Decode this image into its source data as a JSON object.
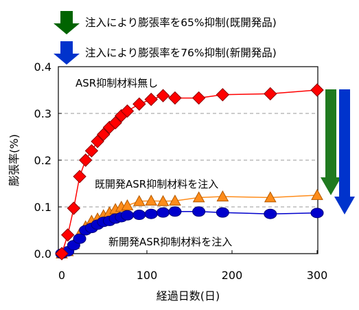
{
  "header": {
    "legend_green": "注入により膨張率を65%抑制(既開発品)",
    "legend_blue": "注入により膨張率を76%抑制(新開発品)"
  },
  "colors": {
    "red": "#ff0000",
    "orange": "#ff8c1a",
    "blue": "#0000cc",
    "green_arrow": "#006400",
    "blue_arrow": "#0033cc"
  },
  "chart_data": {
    "type": "line",
    "xlabel": "経過日数(日)",
    "ylabel": "膨張率(%)",
    "xlim": [
      0,
      320
    ],
    "ylim": [
      0,
      0.4
    ],
    "x_ticks": [
      0,
      100,
      200,
      300
    ],
    "y_ticks": [
      0.0,
      0.1,
      0.2,
      0.3,
      0.4
    ],
    "y_tick_labels": [
      "0.0",
      "0.1",
      "0.2",
      "0.3",
      "0.4"
    ],
    "grid": "horizontal dashed",
    "series": [
      {
        "name": "ASR抑制材料無し",
        "color": "#ff0000",
        "marker": "diamond",
        "x": [
          0,
          7,
          14,
          21,
          28,
          35,
          42,
          49,
          56,
          63,
          70,
          77,
          91,
          105,
          119,
          133,
          161,
          189,
          245,
          300
        ],
        "y": [
          0,
          0.04,
          0.097,
          0.165,
          0.2,
          0.22,
          0.24,
          0.255,
          0.27,
          0.28,
          0.295,
          0.305,
          0.32,
          0.33,
          0.338,
          0.333,
          0.333,
          0.34,
          0.342,
          0.35
        ]
      },
      {
        "name": "既開発ASR抑制材料を注入",
        "color": "#ff8c1a",
        "marker": "triangle",
        "x": [
          0,
          7,
          14,
          21,
          28,
          35,
          42,
          49,
          56,
          63,
          70,
          77,
          91,
          105,
          119,
          133,
          161,
          189,
          245,
          300
        ],
        "y": [
          0,
          0.005,
          0.02,
          0.042,
          0.058,
          0.07,
          0.075,
          0.082,
          0.088,
          0.095,
          0.1,
          0.103,
          0.112,
          0.113,
          0.112,
          0.113,
          0.12,
          0.122,
          0.12,
          0.125
        ]
      },
      {
        "name": "新開発ASR抑制材料を注入",
        "color": "#0000cc",
        "marker": "circle",
        "x": [
          0,
          7,
          14,
          21,
          28,
          35,
          42,
          49,
          56,
          63,
          70,
          77,
          91,
          105,
          119,
          133,
          161,
          189,
          245,
          300
        ],
        "y": [
          0,
          0.005,
          0.018,
          0.032,
          0.05,
          0.055,
          0.062,
          0.068,
          0.07,
          0.075,
          0.078,
          0.082,
          0.083,
          0.085,
          0.088,
          0.09,
          0.09,
          0.088,
          0.085,
          0.087
        ]
      }
    ]
  }
}
